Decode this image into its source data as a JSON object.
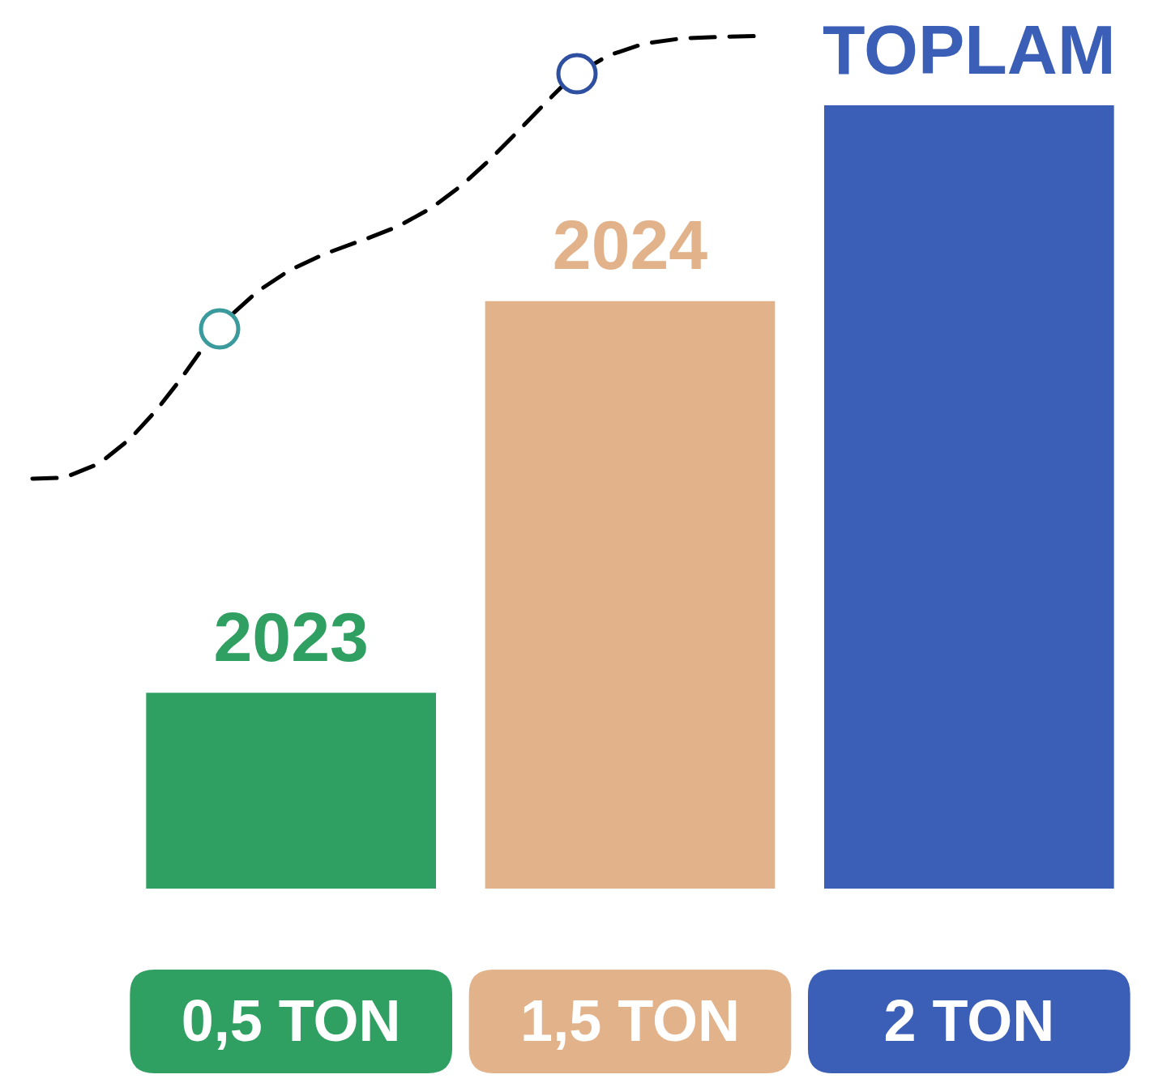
{
  "chart_data": {
    "type": "bar",
    "categories": [
      "2023",
      "2024",
      "TOPLAM"
    ],
    "values": [
      0.5,
      1.5,
      2
    ],
    "colors": [
      "#2f9f62",
      "#e2b28a",
      "#3b5fb6"
    ],
    "value_labels": [
      "0,5 TON",
      "1,5 TON",
      "2 TON"
    ]
  }
}
